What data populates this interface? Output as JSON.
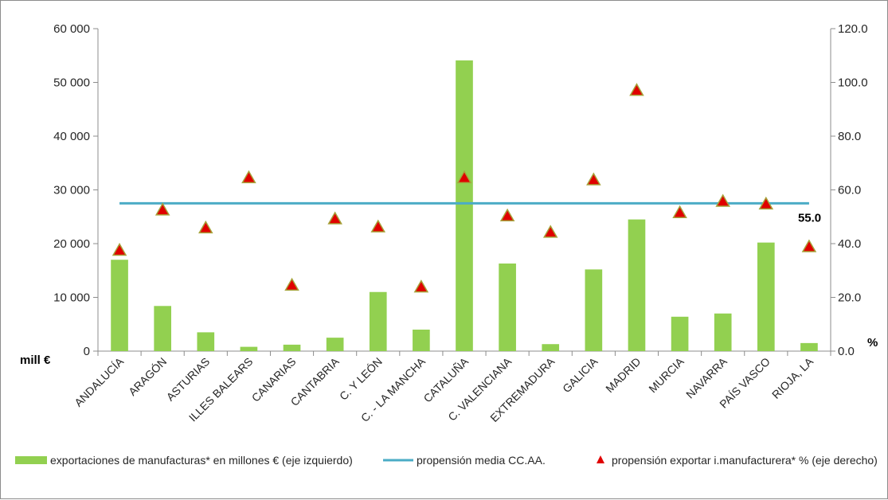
{
  "chart_data": {
    "type": "bar",
    "categories": [
      "ANDALUCÍA",
      "ARAGÓN",
      "ASTURIAS",
      "ILLES BALEARS",
      "CANARIAS",
      "CANTABRIA",
      "C. Y LEÓN",
      "C. - LA MANCHA",
      "CATALUÑA",
      "C. VALENCIANA",
      "EXTREMADURA",
      "GALICIA",
      "MADRID",
      "MURCIA",
      "NAVARRA",
      "PAÍS VASCO",
      "RIOJA, LA"
    ],
    "left_axis": {
      "unit_label": "mill €",
      "ylim": [
        0,
        60000
      ],
      "ticks": [
        0,
        10000,
        20000,
        30000,
        40000,
        50000,
        60000
      ],
      "tick_labels": [
        "0",
        "10 000",
        "20 000",
        "30 000",
        "40 000",
        "50 000",
        "60 000"
      ]
    },
    "right_axis": {
      "unit_label": "%",
      "ylim": [
        0,
        120
      ],
      "ticks": [
        0,
        20,
        40,
        60,
        80,
        100,
        120
      ],
      "tick_labels": [
        "0.0",
        "20.0",
        "40.0",
        "60.0",
        "80.0",
        "100.0",
        "120.0"
      ]
    },
    "grid": false,
    "legend_position": "bottom",
    "series": [
      {
        "name": "exportaciones de manufacturas* en millones € (eje izquierdo)",
        "type": "bar",
        "axis": "left",
        "color": "#92d050",
        "values": [
          17000,
          8400,
          3500,
          800,
          1200,
          2500,
          11000,
          4000,
          54100,
          16300,
          1300,
          15200,
          24500,
          6400,
          7000,
          20200,
          1500
        ]
      },
      {
        "name": "propensión media CC.AA.",
        "type": "line",
        "axis": "right",
        "color": "#4bacc6",
        "value": 55.0
      },
      {
        "name": "propensión exportar i.manufacturera* % (eje derecho)",
        "type": "scatter",
        "axis": "right",
        "color": "#e00000",
        "marker_edge": "#a6a23a",
        "values": [
          37.5,
          52.5,
          45.8,
          64.5,
          24.5,
          49.2,
          46.2,
          23.8,
          64.5,
          50.3,
          44.2,
          63.7,
          97.0,
          51.5,
          55.7,
          54.7,
          38.8
        ]
      }
    ],
    "annotations": [
      {
        "text": "55.0",
        "series": "propensión media CC.AA."
      }
    ]
  }
}
